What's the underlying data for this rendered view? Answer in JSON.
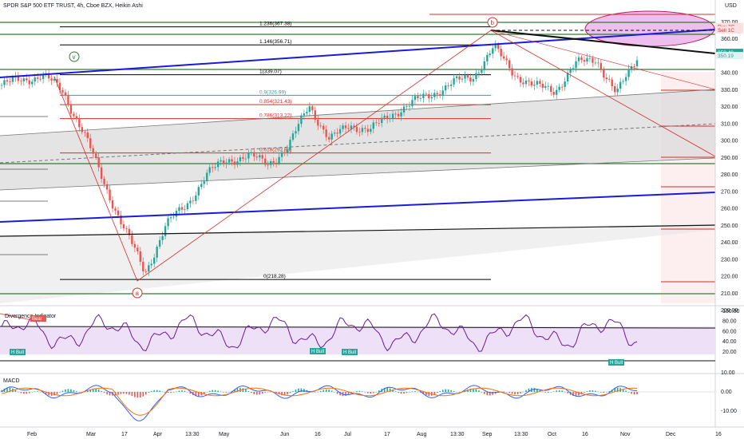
{
  "header": {
    "title": "SPDR S&P 500 ETF TRUST, 4h, Cboe BZX, Heikin Ashi",
    "currency": "USD"
  },
  "colors": {
    "up": "#26a69a",
    "down": "#ef5350",
    "blue_trend": "#1a1adb",
    "fib_red": "#d32f2f",
    "fib_green": "#2e7d32",
    "fib_teal": "#26a69a",
    "rsi_line": "#7b1fa2",
    "macd_line": "#2962ff",
    "signal_line": "#ff6d00",
    "ellipse_fill": "#e6a6e6",
    "ellipse_stroke": "#c2185b"
  },
  "price_axis": {
    "ticks": [
      "370.00",
      "360.00",
      "350.00",
      "340.00",
      "330.00",
      "320.00",
      "310.00",
      "300.00",
      "290.00",
      "280.00",
      "270.00",
      "260.00",
      "250.00",
      "240.00",
      "230.00",
      "220.00",
      "210.00",
      "200.00"
    ],
    "price_labels": [
      {
        "text": "Buy 2C",
        "value": 367.6,
        "bg": "#ffe0e0",
        "color": "#d32f2f"
      },
      {
        "text": "Sell 1C",
        "value": 365.6,
        "bg": "#ffe0e0",
        "color": "#d32f2f"
      },
      {
        "text": "350.49",
        "value": 352.3,
        "bg": "#26a69a",
        "color": "#ffffff"
      },
      {
        "text": "350.19",
        "value": 350.4,
        "bg": "#e0f2f1",
        "color": "#26a69a"
      }
    ]
  },
  "time_axis": [
    "Feb",
    "Mar",
    "17",
    "Apr",
    "13:30",
    "May",
    "Jun",
    "16",
    "Jul",
    "17",
    "Aug",
    "13:30",
    "Sep",
    "13:30",
    "Oct",
    "16",
    "Nov",
    "Dec",
    "16"
  ],
  "fib_levels": [
    {
      "label": "1.236(367.38)",
      "value": 367.38,
      "color": "#000000"
    },
    {
      "label": "1.146(356.71)",
      "value": 356.71,
      "color": "#000000"
    },
    {
      "label": "1(339.07)",
      "value": 339.07,
      "color": "#000000"
    },
    {
      "label": "0.9(326.99)",
      "value": 326.99,
      "color": "#26a69a"
    },
    {
      "label": "0.854(321.43)",
      "value": 321.43,
      "color": "#d32f2f"
    },
    {
      "label": "0.786(313.22)",
      "value": 313.22,
      "color": "#d32f2f"
    },
    {
      "label": "0.618(292.93)",
      "value": 292.93,
      "color": "#d32f2f"
    },
    {
      "label": "0(218.28)",
      "value": 218.28,
      "color": "#000000"
    }
  ],
  "wave_labels": [
    {
      "text": "v",
      "color": "#2e7d32"
    },
    {
      "text": "b",
      "color": "#d32f2f"
    },
    {
      "text": "a",
      "color": "#d32f2f"
    }
  ],
  "rsi": {
    "title": "Divergence Indicator",
    "ticks": [
      "100.00",
      "80.00",
      "60.00",
      "40.00",
      "20.00"
    ],
    "tags": [
      {
        "text": "Bear",
        "bg": "#ef5350"
      },
      {
        "text": "H Bull",
        "bg": "#26a69a"
      },
      {
        "text": "H Bull",
        "bg": "#26a69a"
      },
      {
        "text": "H Bull",
        "bg": "#26a69a"
      },
      {
        "text": "H Bull",
        "bg": "#26a69a"
      }
    ]
  },
  "macd": {
    "title": "MACD",
    "ticks": [
      "10.00",
      "0.00",
      "-10.00"
    ]
  },
  "chart_data": {
    "type": "candlestick",
    "interval": "4h",
    "style": "Heikin Ashi",
    "approx_closes": [
      {
        "x": "Jan",
        "y": 333
      },
      {
        "x": "Jan",
        "y": 336
      },
      {
        "x": "Feb",
        "y": 339
      },
      {
        "x": "Feb",
        "y": 329
      },
      {
        "x": "Feb",
        "y": 305
      },
      {
        "x": "Mar",
        "y": 275
      },
      {
        "x": "Mar",
        "y": 248
      },
      {
        "x": "17",
        "y": 222
      },
      {
        "x": "17",
        "y": 250
      },
      {
        "x": "Apr",
        "y": 262
      },
      {
        "x": "Apr",
        "y": 280
      },
      {
        "x": "13:30",
        "y": 289
      },
      {
        "x": "May",
        "y": 291
      },
      {
        "x": "May",
        "y": 287
      },
      {
        "x": "May",
        "y": 296
      },
      {
        "x": "Jun",
        "y": 322
      },
      {
        "x": "Jun",
        "y": 300
      },
      {
        "x": "16",
        "y": 310
      },
      {
        "x": "Jul",
        "y": 306
      },
      {
        "x": "Jul",
        "y": 316
      },
      {
        "x": "17",
        "y": 322
      },
      {
        "x": "Aug",
        "y": 328
      },
      {
        "x": "Aug",
        "y": 334
      },
      {
        "x": "13:30",
        "y": 338
      },
      {
        "x": "Sep",
        "y": 355
      },
      {
        "x": "Sep",
        "y": 340
      },
      {
        "x": "13:30",
        "y": 332
      },
      {
        "x": "Oct",
        "y": 330
      },
      {
        "x": "Oct",
        "y": 345
      },
      {
        "x": "16",
        "y": 349
      },
      {
        "x": "Nov",
        "y": 327
      },
      {
        "x": "Nov",
        "y": 350
      }
    ],
    "last_price": 350.49,
    "rsi_range": [
      0,
      100
    ],
    "macd_range": [
      -15,
      15
    ]
  }
}
